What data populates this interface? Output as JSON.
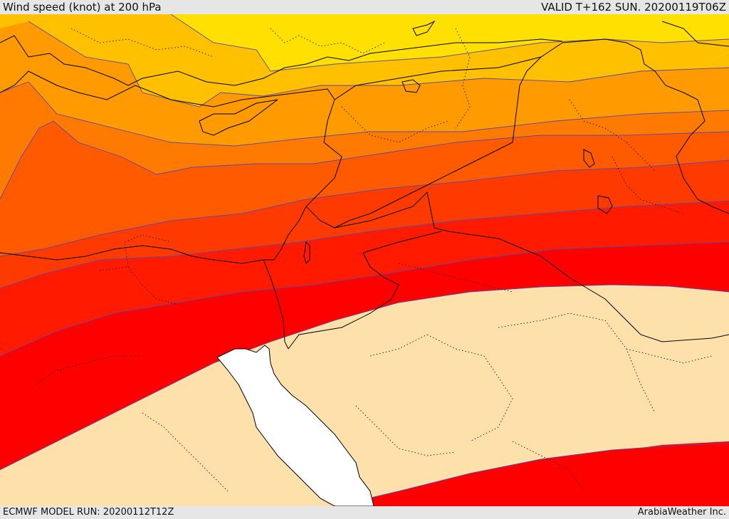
{
  "header": {
    "title": "Wind speed (knot) at 200 hPa",
    "valid": "VALID T+162 SUN. 20200119T06Z"
  },
  "footer": {
    "model_run": "ECMWF MODEL RUN: 20200112T12Z",
    "credit": "ArabiaWeather Inc."
  },
  "colors": {
    "band_1": "#ffe000",
    "band_2": "#ffc000",
    "band_3": "#ff9a00",
    "band_4": "#ff7a00",
    "band_5": "#ff5a00",
    "band_6": "#ff3a00",
    "band_7": "#ff1a00",
    "band_8": "#ff0000",
    "calm_area": "#fde0aa",
    "sea": "#ffffff",
    "borders": "#000000",
    "contour_lines": "#5a4aa8"
  }
}
